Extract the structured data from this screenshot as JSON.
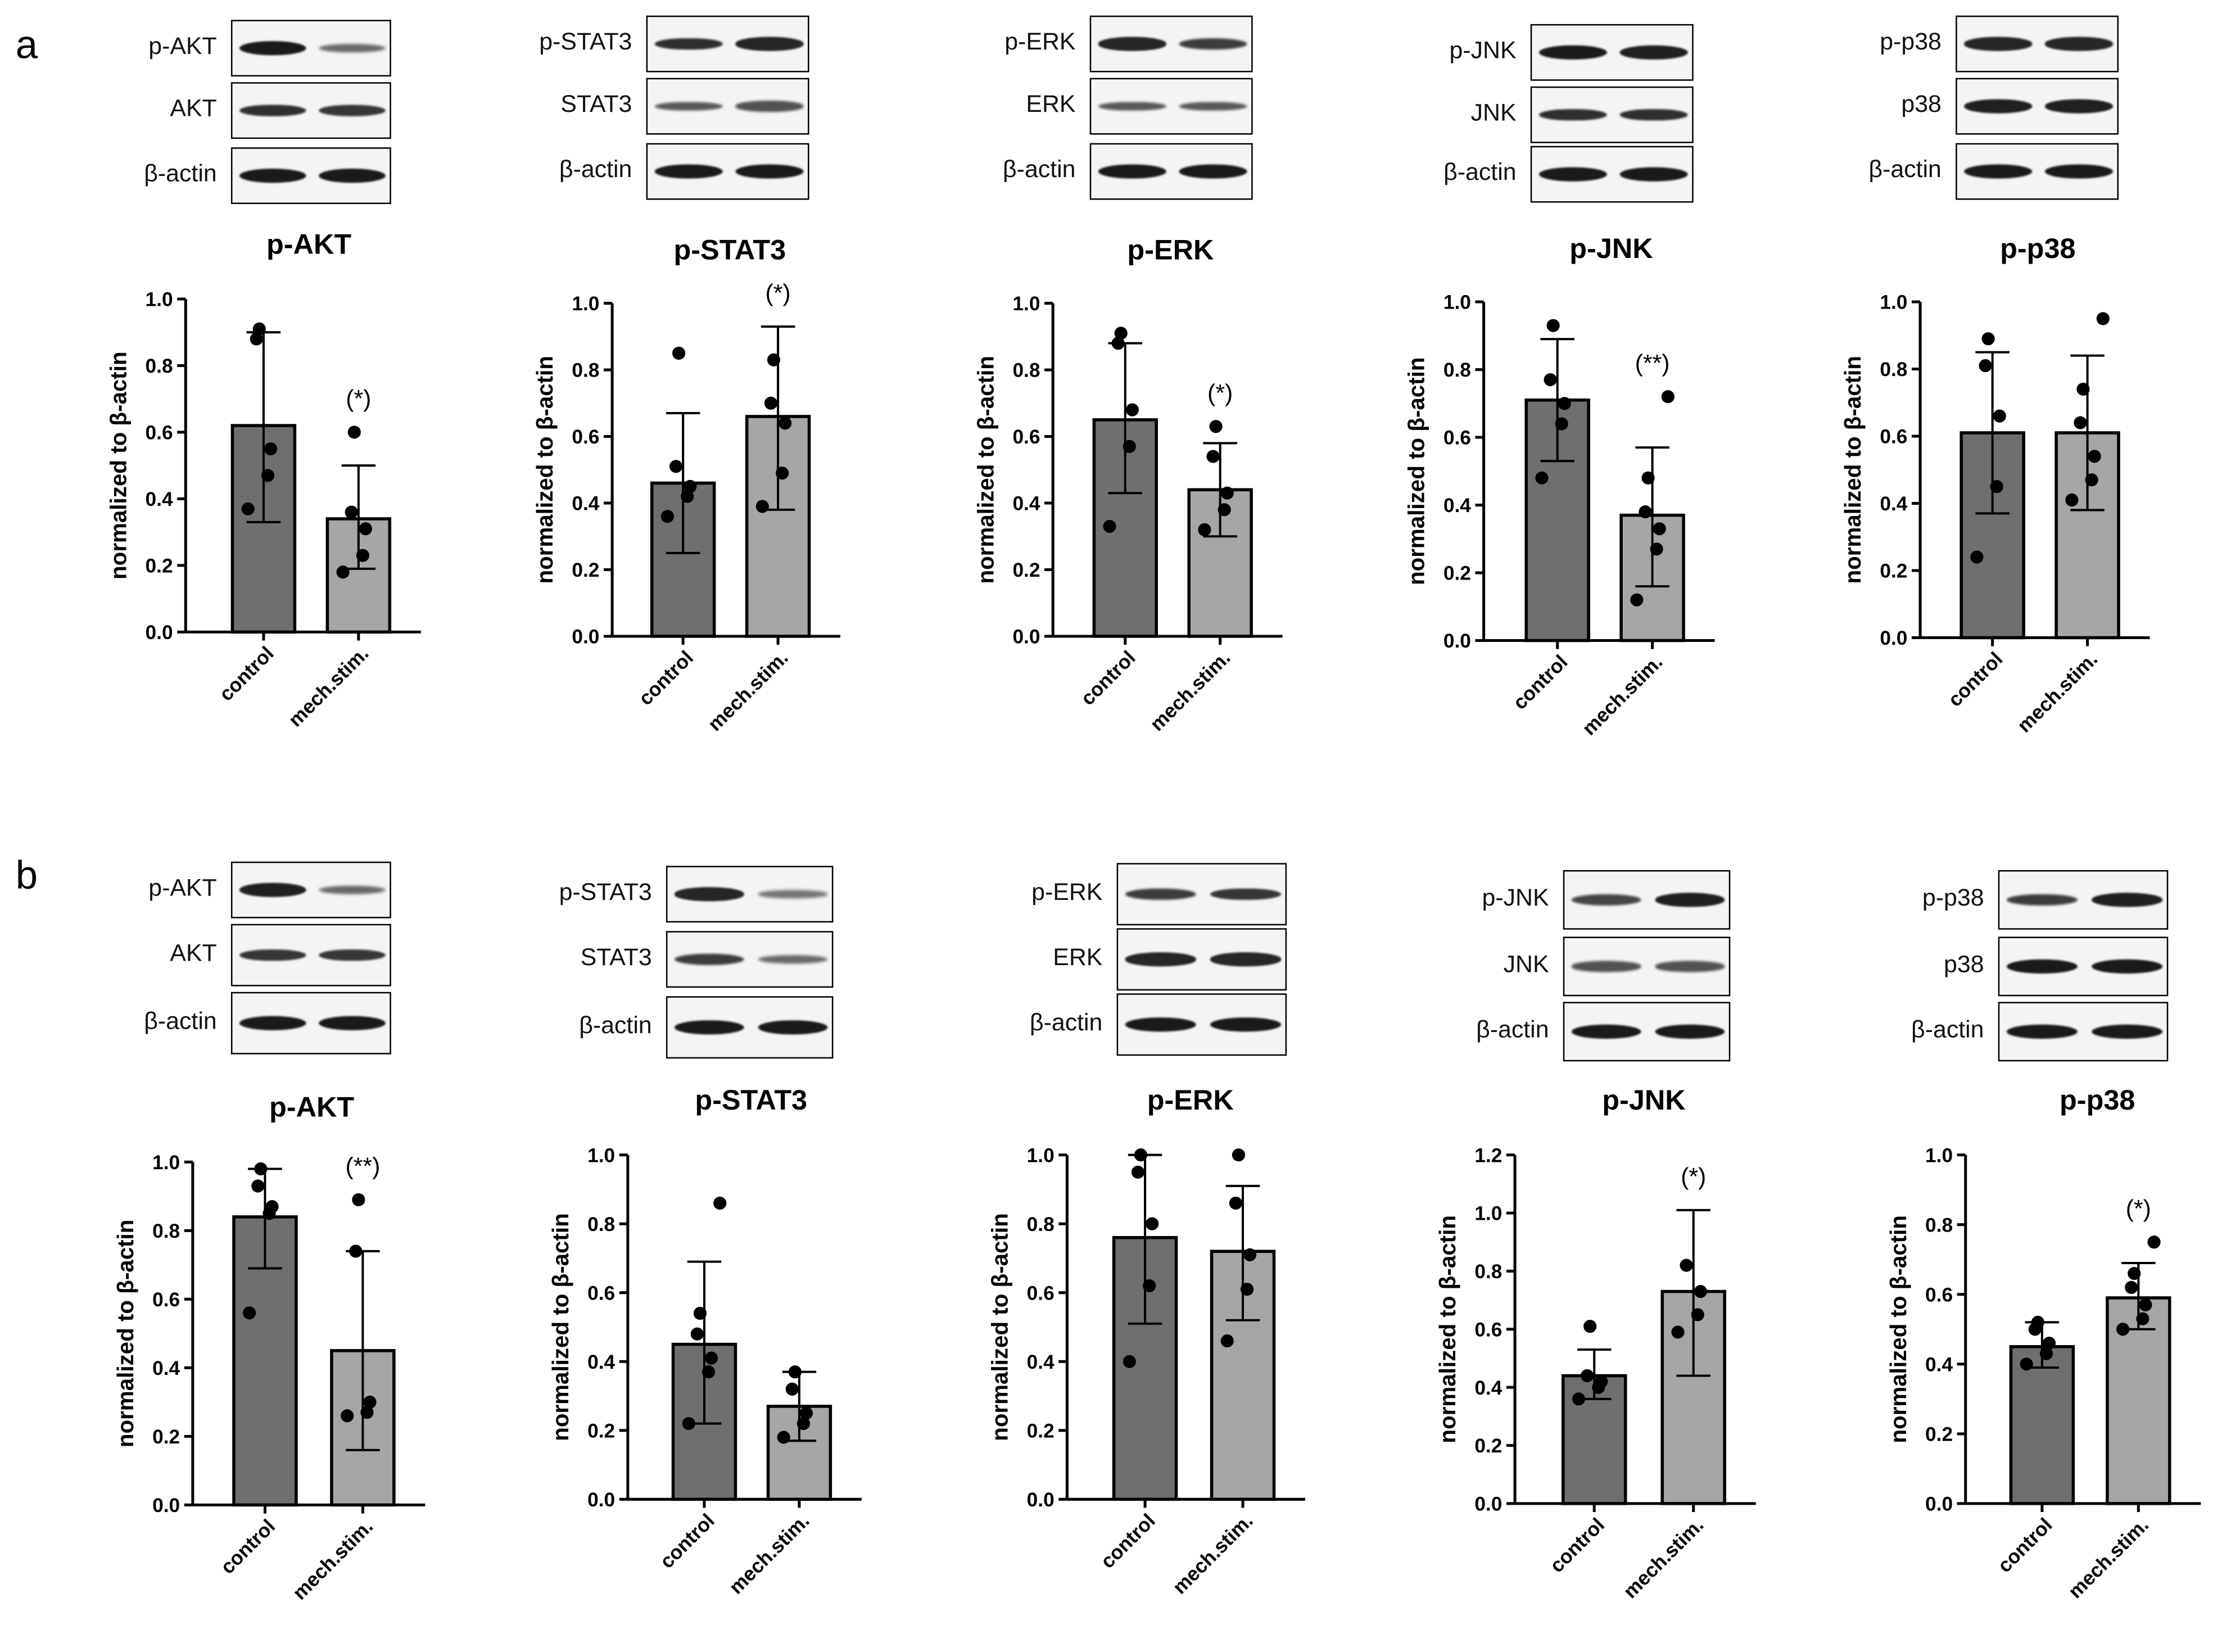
{
  "figure": {
    "panel_letters": [
      "a",
      "b"
    ],
    "band_color": "#1a1a1a",
    "bar_colors": {
      "control": "#6f6f6f",
      "mech.stim.": "#a6a6a7"
    }
  },
  "blots": [
    {
      "target": "p-AKT",
      "rows": [
        {
          "label": "p-AKT",
          "intensities": [
            1.0,
            0.45
          ]
        },
        {
          "label": "AKT",
          "intensities": [
            0.85,
            0.8
          ]
        },
        {
          "label": "β-actin",
          "intensities": [
            1.0,
            1.0
          ]
        }
      ]
    },
    {
      "target": "p-STAT3",
      "rows": [
        {
          "label": "p-STAT3",
          "intensities": [
            0.85,
            0.9
          ]
        },
        {
          "label": "STAT3",
          "intensities": [
            0.55,
            0.6
          ]
        },
        {
          "label": "β-actin",
          "intensities": [
            1.0,
            1.0
          ]
        }
      ]
    },
    {
      "target": "p-ERK",
      "rows": [
        {
          "label": "p-ERK",
          "intensities": [
            0.9,
            0.75
          ]
        },
        {
          "label": "ERK",
          "intensities": [
            0.55,
            0.55
          ]
        },
        {
          "label": "β-actin",
          "intensities": [
            1.0,
            1.0
          ]
        }
      ]
    },
    {
      "target": "p-JNK",
      "rows": [
        {
          "label": "p-JNK",
          "intensities": [
            1.0,
            0.95
          ]
        },
        {
          "label": "JNK",
          "intensities": [
            0.85,
            0.85
          ]
        },
        {
          "label": "β-actin",
          "intensities": [
            1.0,
            1.0
          ]
        }
      ]
    },
    {
      "target": "p-p38",
      "rows": [
        {
          "label": "p-p38",
          "intensities": [
            0.9,
            0.9
          ]
        },
        {
          "label": "p38",
          "intensities": [
            0.95,
            0.95
          ]
        },
        {
          "label": "β-actin",
          "intensities": [
            1.0,
            1.0
          ]
        }
      ]
    },
    {
      "target": "p-AKT",
      "rows": [
        {
          "label": "p-AKT",
          "intensities": [
            0.95,
            0.45
          ]
        },
        {
          "label": "AKT",
          "intensities": [
            0.8,
            0.8
          ]
        },
        {
          "label": "β-actin",
          "intensities": [
            1.0,
            1.0
          ]
        }
      ]
    },
    {
      "target": "p-STAT3",
      "rows": [
        {
          "label": "p-STAT3",
          "intensities": [
            0.9,
            0.35
          ]
        },
        {
          "label": "STAT3",
          "intensities": [
            0.75,
            0.45
          ]
        },
        {
          "label": "β-actin",
          "intensities": [
            1.0,
            1.0
          ]
        }
      ]
    },
    {
      "target": "p-ERK",
      "rows": [
        {
          "label": "p-ERK",
          "intensities": [
            0.75,
            0.8
          ]
        },
        {
          "label": "ERK",
          "intensities": [
            0.9,
            0.9
          ]
        },
        {
          "label": "β-actin",
          "intensities": [
            1.0,
            1.0
          ]
        }
      ]
    },
    {
      "target": "p-JNK",
      "rows": [
        {
          "label": "p-JNK",
          "intensities": [
            0.7,
            0.95
          ]
        },
        {
          "label": "JNK",
          "intensities": [
            0.6,
            0.6
          ]
        },
        {
          "label": "β-actin",
          "intensities": [
            1.0,
            1.0
          ]
        }
      ]
    },
    {
      "target": "p-p38",
      "rows": [
        {
          "label": "p-p38",
          "intensities": [
            0.75,
            0.95
          ]
        },
        {
          "label": "p38",
          "intensities": [
            1.0,
            1.0
          ]
        },
        {
          "label": "β-actin",
          "intensities": [
            1.0,
            1.0
          ]
        }
      ]
    }
  ],
  "chart_data": [
    {
      "panel": "a",
      "type": "bar",
      "title": "p-AKT",
      "ylabel": "normalized to β-actin",
      "ylim": [
        0,
        1.0
      ],
      "yticks": [
        "0.0",
        "0.2",
        "0.4",
        "0.6",
        "0.8",
        "1.0"
      ],
      "categories": [
        "control",
        "mech.stim."
      ],
      "values": [
        0.62,
        0.34
      ],
      "error": [
        [
          0.33,
          0.9
        ],
        [
          0.19,
          0.5
        ]
      ],
      "points": [
        [
          0.37,
          0.47,
          0.55,
          0.88,
          0.91
        ],
        [
          0.18,
          0.23,
          0.31,
          0.36,
          0.6
        ]
      ],
      "significance": [
        "",
        "(*)"
      ]
    },
    {
      "panel": "a",
      "type": "bar",
      "title": "p-STAT3",
      "ylabel": "normalized to β-actin",
      "ylim": [
        0,
        1.0
      ],
      "yticks": [
        "0.0",
        "0.2",
        "0.4",
        "0.6",
        "0.8",
        "1.0"
      ],
      "categories": [
        "control",
        "mech.stim."
      ],
      "values": [
        0.46,
        0.66
      ],
      "error": [
        [
          0.25,
          0.67
        ],
        [
          0.38,
          0.93
        ]
      ],
      "points": [
        [
          0.36,
          0.42,
          0.45,
          0.51,
          0.85
        ],
        [
          0.39,
          0.49,
          0.64,
          0.7,
          0.83
        ]
      ],
      "significance": [
        "",
        "(*)"
      ]
    },
    {
      "panel": "a",
      "type": "bar",
      "title": "p-ERK",
      "ylabel": "normalized to β-actin",
      "ylim": [
        0,
        1.0
      ],
      "yticks": [
        "0.0",
        "0.2",
        "0.4",
        "0.6",
        "0.8",
        "1.0"
      ],
      "categories": [
        "control",
        "mech.stim."
      ],
      "values": [
        0.65,
        0.44
      ],
      "error": [
        [
          0.43,
          0.88
        ],
        [
          0.3,
          0.58
        ]
      ],
      "points": [
        [
          0.33,
          0.57,
          0.68,
          0.88,
          0.91
        ],
        [
          0.32,
          0.38,
          0.43,
          0.54,
          0.63
        ]
      ],
      "significance": [
        "",
        "(*)"
      ]
    },
    {
      "panel": "a",
      "type": "bar",
      "title": "p-JNK",
      "ylabel": "normalized to β-actin",
      "ylim": [
        0,
        1.0
      ],
      "yticks": [
        "0.0",
        "0.2",
        "0.4",
        "0.6",
        "0.8",
        "1.0"
      ],
      "categories": [
        "control",
        "mech.stim."
      ],
      "values": [
        0.71,
        0.37
      ],
      "error": [
        [
          0.53,
          0.89
        ],
        [
          0.16,
          0.57
        ]
      ],
      "points": [
        [
          0.48,
          0.64,
          0.7,
          0.77,
          0.93
        ],
        [
          0.12,
          0.27,
          0.33,
          0.38,
          0.48,
          0.72
        ]
      ],
      "significance": [
        "",
        "(**)"
      ]
    },
    {
      "panel": "a",
      "type": "bar",
      "title": "p-p38",
      "ylabel": "normalized to β-actin",
      "ylim": [
        0,
        1.0
      ],
      "yticks": [
        "0.0",
        "0.2",
        "0.4",
        "0.6",
        "0.8",
        "1.0"
      ],
      "categories": [
        "control",
        "mech.stim."
      ],
      "values": [
        0.61,
        0.61
      ],
      "error": [
        [
          0.37,
          0.85
        ],
        [
          0.38,
          0.84
        ]
      ],
      "points": [
        [
          0.24,
          0.45,
          0.66,
          0.81,
          0.89
        ],
        [
          0.41,
          0.47,
          0.54,
          0.64,
          0.74,
          0.95
        ]
      ],
      "significance": [
        "",
        ""
      ]
    },
    {
      "panel": "b",
      "type": "bar",
      "title": "p-AKT",
      "ylabel": "normalized to β-actin",
      "ylim": [
        0,
        1.0
      ],
      "yticks": [
        "0.0",
        "0.2",
        "0.4",
        "0.6",
        "0.8",
        "1.0"
      ],
      "categories": [
        "control",
        "mech.stim."
      ],
      "values": [
        0.84,
        0.45
      ],
      "error": [
        [
          0.69,
          0.98
        ],
        [
          0.16,
          0.74
        ]
      ],
      "points": [
        [
          0.56,
          0.85,
          0.87,
          0.93,
          0.98
        ],
        [
          0.26,
          0.27,
          0.3,
          0.74,
          0.89
        ]
      ],
      "significance": [
        "",
        "(**)"
      ]
    },
    {
      "panel": "b",
      "type": "bar",
      "title": "p-STAT3",
      "ylabel": "normalized to β-actin",
      "ylim": [
        0,
        1.0
      ],
      "yticks": [
        "0.0",
        "0.2",
        "0.4",
        "0.6",
        "0.8",
        "1.0"
      ],
      "categories": [
        "control",
        "mech.stim."
      ],
      "values": [
        0.45,
        0.27
      ],
      "error": [
        [
          0.22,
          0.69
        ],
        [
          0.17,
          0.37
        ]
      ],
      "points": [
        [
          0.22,
          0.37,
          0.41,
          0.48,
          0.54,
          0.86
        ],
        [
          0.18,
          0.22,
          0.25,
          0.32,
          0.37
        ]
      ],
      "significance": [
        "",
        ""
      ]
    },
    {
      "panel": "b",
      "type": "bar",
      "title": "p-ERK",
      "ylabel": "normalized to β-actin",
      "ylim": [
        0,
        1.0
      ],
      "yticks": [
        "0.0",
        "0.2",
        "0.4",
        "0.6",
        "0.8",
        "1.0"
      ],
      "categories": [
        "control",
        "mech.stim."
      ],
      "values": [
        0.76,
        0.72
      ],
      "error": [
        [
          0.51,
          1.0
        ],
        [
          0.52,
          0.91
        ]
      ],
      "points": [
        [
          0.4,
          0.62,
          0.8,
          0.95,
          1.0
        ],
        [
          0.46,
          0.61,
          0.71,
          0.86,
          1.0
        ]
      ],
      "significance": [
        "",
        ""
      ]
    },
    {
      "panel": "b",
      "type": "bar",
      "title": "p-JNK",
      "ylabel": "normalized to β-actin",
      "ylim": [
        0,
        1.2
      ],
      "yticks": [
        "0.0",
        "0.2",
        "0.4",
        "0.6",
        "0.8",
        "1.0",
        "1.2"
      ],
      "categories": [
        "control",
        "mech.stim."
      ],
      "values": [
        0.44,
        0.73
      ],
      "error": [
        [
          0.36,
          0.53
        ],
        [
          0.44,
          1.01
        ]
      ],
      "points": [
        [
          0.36,
          0.4,
          0.42,
          0.44,
          0.61
        ],
        [
          0.59,
          0.65,
          0.73,
          0.82
        ]
      ],
      "significance": [
        "",
        "(*)"
      ]
    },
    {
      "panel": "b",
      "type": "bar",
      "title": "p-p38",
      "ylabel": "normalized to β-actin",
      "ylim": [
        0,
        1.0
      ],
      "yticks": [
        "0.0",
        "0.2",
        "0.4",
        "0.6",
        "0.8",
        "1.0"
      ],
      "categories": [
        "control",
        "mech.stim."
      ],
      "values": [
        0.45,
        0.59
      ],
      "error": [
        [
          0.39,
          0.52
        ],
        [
          0.5,
          0.69
        ]
      ],
      "points": [
        [
          0.4,
          0.43,
          0.46,
          0.5,
          0.52
        ],
        [
          0.5,
          0.53,
          0.57,
          0.62,
          0.66,
          0.75
        ]
      ],
      "significance": [
        "",
        "(*)"
      ]
    }
  ]
}
